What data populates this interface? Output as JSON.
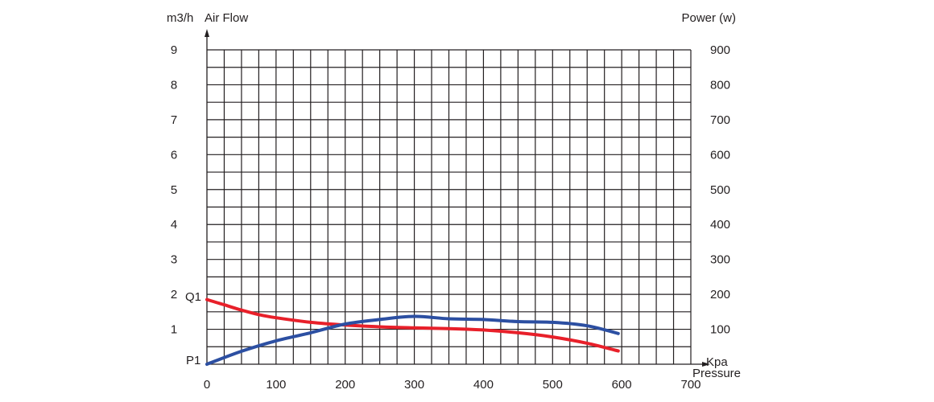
{
  "chart_data": {
    "type": "line",
    "title": "",
    "xlabel": "Pressure",
    "xunit": "Kpa",
    "ylabel_left": "Air Flow",
    "yunit_left": "m3/h",
    "ylabel_right": "Power (w)",
    "xlim": [
      0,
      700
    ],
    "ylim_left": [
      0,
      9
    ],
    "ylim_right": [
      0,
      900
    ],
    "x_ticks": [
      "0",
      "100",
      "200",
      "300",
      "400",
      "500",
      "600",
      "700"
    ],
    "y_ticks_left": [
      "1",
      "2",
      "3",
      "4",
      "5",
      "6",
      "7",
      "8",
      "9"
    ],
    "y_ticks_right": [
      "100",
      "200",
      "300",
      "400",
      "500",
      "600",
      "700",
      "800",
      "900"
    ],
    "grid": true,
    "annotations": [
      {
        "text": "Q1",
        "attach": "air-flow start"
      },
      {
        "text": "P1",
        "attach": "power start"
      }
    ],
    "series": [
      {
        "axis": "left",
        "color": "#e8202a",
        "points": [
          [
            0,
            1.85
          ],
          [
            25,
            1.7
          ],
          [
            50,
            1.55
          ],
          [
            75,
            1.42
          ],
          [
            100,
            1.33
          ],
          [
            150,
            1.2
          ],
          [
            200,
            1.12
          ],
          [
            250,
            1.07
          ],
          [
            300,
            1.04
          ],
          [
            350,
            1.02
          ],
          [
            400,
            0.98
          ],
          [
            450,
            0.9
          ],
          [
            500,
            0.78
          ],
          [
            550,
            0.6
          ],
          [
            595,
            0.38
          ]
        ]
      },
      {
        "axis": "right",
        "color": "#2c4fa2",
        "points": [
          [
            0,
            0
          ],
          [
            50,
            37
          ],
          [
            100,
            67
          ],
          [
            150,
            90
          ],
          [
            200,
            115
          ],
          [
            250,
            128
          ],
          [
            300,
            137
          ],
          [
            350,
            130
          ],
          [
            400,
            128
          ],
          [
            450,
            122
          ],
          [
            500,
            120
          ],
          [
            550,
            110
          ],
          [
            595,
            88
          ]
        ]
      }
    ]
  }
}
